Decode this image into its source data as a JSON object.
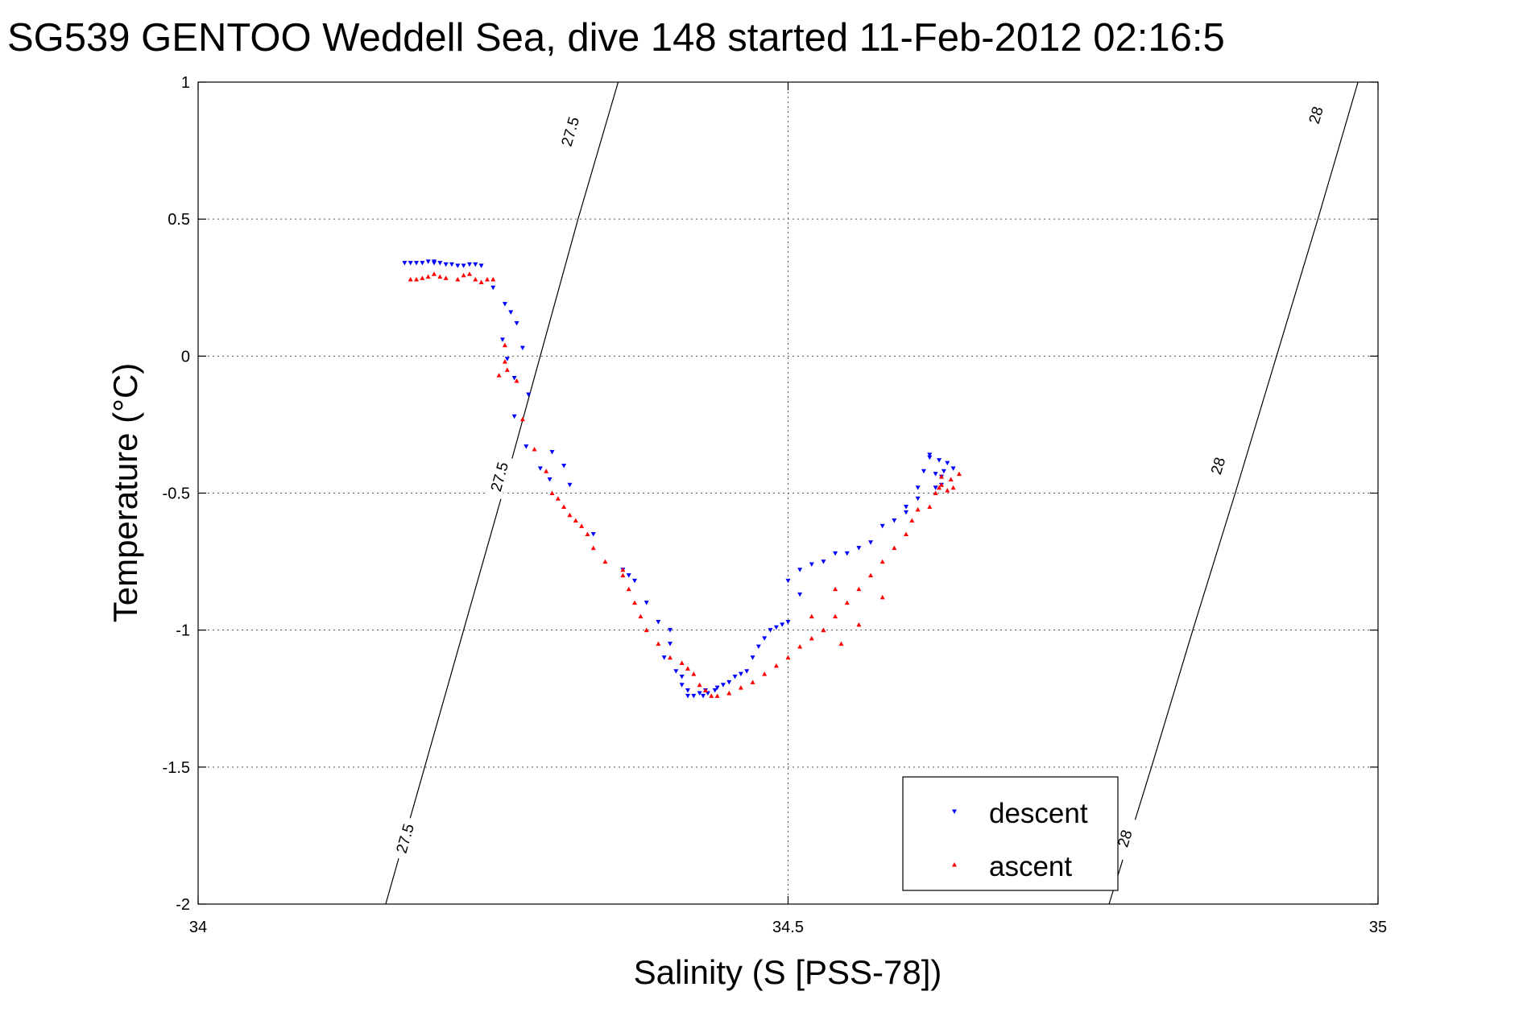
{
  "chart_data": {
    "type": "scatter",
    "title": "SG539 GENTOO Weddell Sea, dive 148 started 11-Feb-2012 02:16:5",
    "xlabel": "Salinity (S [PSS-78])",
    "ylabel": "Temperature (°C)",
    "xlim": [
      34,
      35
    ],
    "ylim": [
      -2,
      1
    ],
    "xticks": [
      34,
      34.5,
      35
    ],
    "xtick_labels": [
      "34",
      "34.5",
      "35"
    ],
    "yticks": [
      1,
      0.5,
      0,
      -0.5,
      -1,
      -1.5,
      -2
    ],
    "ytick_labels": [
      "1",
      "0.5",
      "0",
      "-0.5",
      "-1",
      "-1.5",
      "-2"
    ],
    "grid": true,
    "legend_position": "bottom-right",
    "contours": [
      {
        "level": "27.5",
        "points": [
          [
            34.159,
            -2.0
          ],
          [
            34.192,
            -1.5
          ],
          [
            34.225,
            -1.0
          ],
          [
            34.258,
            -0.5
          ],
          [
            34.29,
            0.0
          ],
          [
            34.322,
            0.5
          ],
          [
            34.356,
            1.0
          ]
        ],
        "labels": [
          {
            "x": 34.255,
            "y": -0.44
          },
          {
            "x": 34.175,
            "y": -1.76
          },
          {
            "x": 34.315,
            "y": 0.82
          }
        ]
      },
      {
        "level": "28",
        "points": [
          [
            34.772,
            -2.0
          ],
          [
            34.808,
            -1.5
          ],
          [
            34.843,
            -1.0
          ],
          [
            34.879,
            -0.5
          ],
          [
            34.914,
            0.0
          ],
          [
            34.949,
            0.5
          ],
          [
            34.983,
            1.0
          ]
        ],
        "labels": [
          {
            "x": 34.864,
            "y": -0.4
          },
          {
            "x": 34.785,
            "y": -1.76
          },
          {
            "x": 34.947,
            "y": 0.88
          }
        ]
      }
    ],
    "series": [
      {
        "name": "descent",
        "color": "#0000ff",
        "marker": "triangle-down",
        "x": [
          34.175,
          34.18,
          34.185,
          34.19,
          34.195,
          34.2,
          34.2,
          34.205,
          34.21,
          34.215,
          34.22,
          34.225,
          34.23,
          34.235,
          34.24,
          34.25,
          34.26,
          34.265,
          34.27,
          34.275,
          34.262,
          34.258,
          34.268,
          34.28,
          34.268,
          34.278,
          34.29,
          34.298,
          34.3,
          34.31,
          34.315,
          34.335,
          34.36,
          34.365,
          34.37,
          34.38,
          34.39,
          34.4,
          34.4,
          34.395,
          34.405,
          34.41,
          34.41,
          34.415,
          34.415,
          34.42,
          34.425,
          34.43,
          34.428,
          34.432,
          34.438,
          34.44,
          34.445,
          34.45,
          34.455,
          34.46,
          34.465,
          34.47,
          34.475,
          34.48,
          34.485,
          34.49,
          34.495,
          34.5,
          34.51,
          34.5,
          34.51,
          34.52,
          34.53,
          34.54,
          34.55,
          34.56,
          34.57,
          34.58,
          34.59,
          34.6,
          34.61,
          34.615,
          34.62,
          34.6,
          34.61,
          34.625,
          34.628,
          34.63,
          34.632,
          34.635,
          34.64,
          34.62,
          34.63,
          34.625
        ],
        "y": [
          0.34,
          0.34,
          0.34,
          0.34,
          0.345,
          0.345,
          0.34,
          0.34,
          0.335,
          0.335,
          0.33,
          0.33,
          0.335,
          0.335,
          0.33,
          0.25,
          0.19,
          0.16,
          0.12,
          0.03,
          -0.01,
          0.06,
          -0.08,
          -0.14,
          -0.22,
          -0.33,
          -0.41,
          -0.45,
          -0.35,
          -0.4,
          -0.47,
          -0.65,
          -0.78,
          -0.8,
          -0.82,
          -0.9,
          -0.97,
          -1.0,
          -1.05,
          -1.1,
          -1.15,
          -1.17,
          -1.2,
          -1.22,
          -1.24,
          -1.24,
          -1.23,
          -1.22,
          -1.24,
          -1.23,
          -1.22,
          -1.21,
          -1.2,
          -1.19,
          -1.17,
          -1.16,
          -1.15,
          -1.1,
          -1.06,
          -1.03,
          -1.0,
          -0.99,
          -0.98,
          -0.97,
          -0.87,
          -0.82,
          -0.78,
          -0.76,
          -0.75,
          -0.72,
          -0.72,
          -0.7,
          -0.68,
          -0.62,
          -0.6,
          -0.55,
          -0.48,
          -0.42,
          -0.37,
          -0.57,
          -0.52,
          -0.43,
          -0.38,
          -0.44,
          -0.42,
          -0.39,
          -0.41,
          -0.36,
          -0.47,
          -0.48
        ]
      },
      {
        "name": "ascent",
        "color": "#ff0000",
        "marker": "triangle-up",
        "x": [
          34.18,
          34.185,
          34.19,
          34.195,
          34.2,
          34.205,
          34.21,
          34.22,
          34.225,
          34.23,
          34.235,
          34.24,
          34.245,
          34.25,
          34.26,
          34.26,
          34.255,
          34.262,
          34.27,
          34.275,
          34.285,
          34.295,
          34.3,
          34.305,
          34.31,
          34.315,
          34.32,
          34.325,
          34.33,
          34.335,
          34.345,
          34.36,
          34.36,
          34.365,
          34.37,
          34.375,
          34.38,
          34.39,
          34.4,
          34.41,
          34.415,
          34.42,
          34.425,
          34.43,
          34.435,
          34.44,
          34.45,
          34.46,
          34.47,
          34.48,
          34.49,
          34.5,
          34.51,
          34.52,
          34.53,
          34.54,
          34.55,
          34.56,
          34.57,
          34.58,
          34.59,
          34.6,
          34.605,
          34.61,
          34.62,
          34.625,
          34.628,
          34.63,
          34.635,
          34.64,
          34.638,
          34.645,
          34.63,
          34.54,
          34.52,
          34.53,
          34.545,
          34.56,
          34.58
        ],
        "y": [
          0.28,
          0.28,
          0.285,
          0.29,
          0.3,
          0.29,
          0.285,
          0.28,
          0.295,
          0.3,
          0.28,
          0.27,
          0.28,
          0.28,
          0.04,
          -0.02,
          -0.07,
          -0.05,
          -0.09,
          -0.23,
          -0.34,
          -0.42,
          -0.5,
          -0.52,
          -0.55,
          -0.58,
          -0.6,
          -0.62,
          -0.65,
          -0.7,
          -0.75,
          -0.78,
          -0.8,
          -0.85,
          -0.9,
          -0.95,
          -1.0,
          -1.05,
          -1.1,
          -1.12,
          -1.14,
          -1.16,
          -1.2,
          -1.22,
          -1.24,
          -1.24,
          -1.23,
          -1.21,
          -1.19,
          -1.16,
          -1.13,
          -1.1,
          -1.06,
          -1.03,
          -1.0,
          -0.95,
          -0.9,
          -0.85,
          -0.8,
          -0.75,
          -0.7,
          -0.65,
          -0.6,
          -0.56,
          -0.55,
          -0.5,
          -0.48,
          -0.47,
          -0.49,
          -0.48,
          -0.45,
          -0.43,
          -0.44,
          -0.85,
          -0.95,
          -1.0,
          -1.05,
          -0.98,
          -0.88
        ]
      }
    ]
  }
}
